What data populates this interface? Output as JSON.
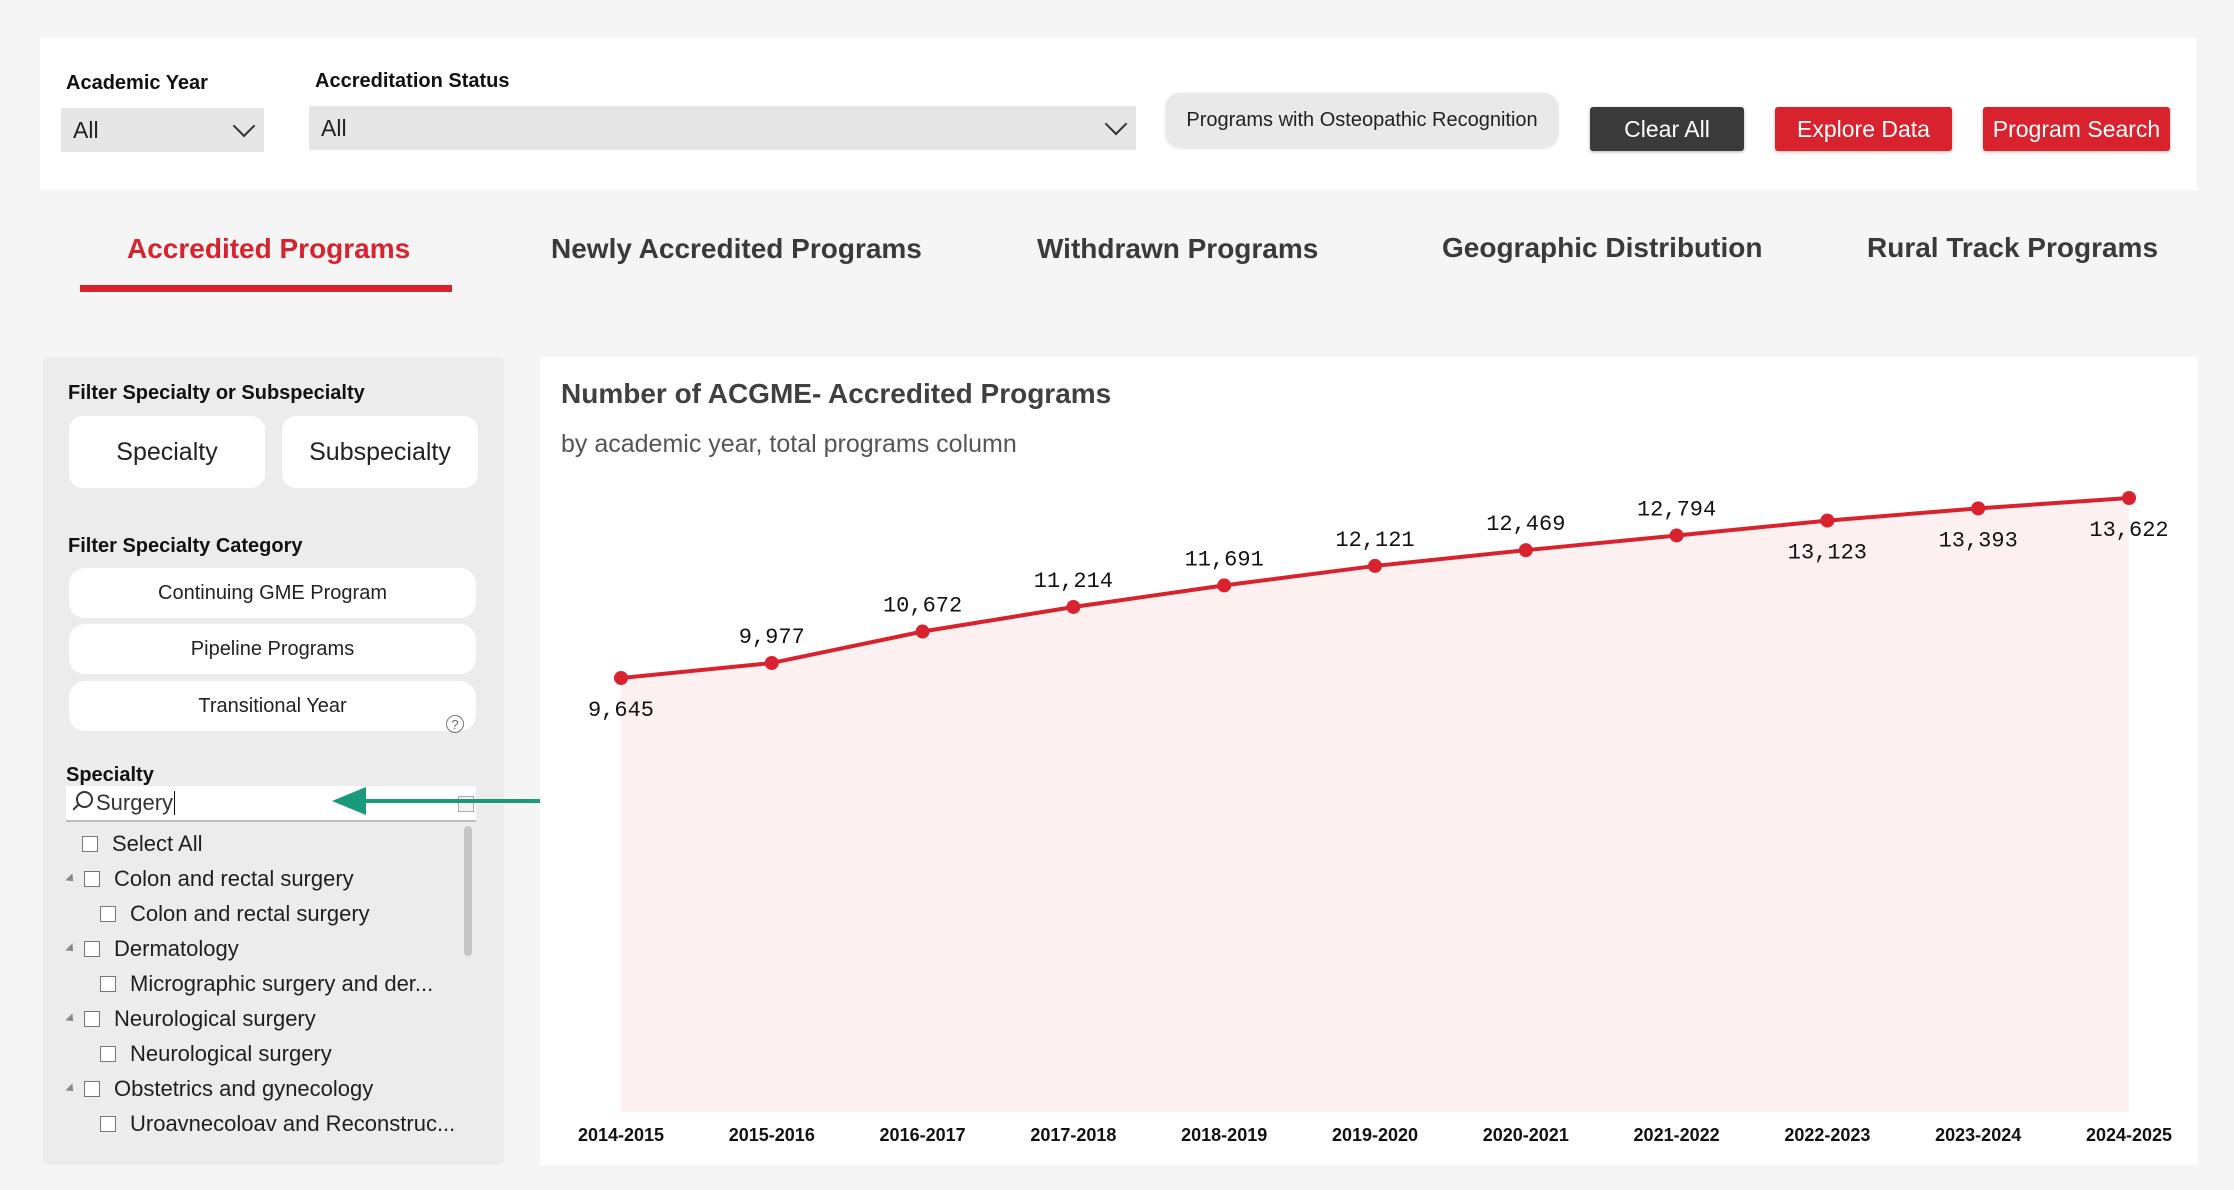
{
  "filters": {
    "academic_year": {
      "label": "Academic Year",
      "value": "All"
    },
    "accreditation_status": {
      "label": "Accreditation Status",
      "value": "All"
    },
    "osteopathic_button": "Programs with Osteopathic Recognition",
    "clear_all": "Clear All",
    "explore_data": "Explore Data",
    "program_search": "Program Search"
  },
  "tabs": [
    {
      "label": "Accredited Programs",
      "active": true
    },
    {
      "label": "Newly Accredited Programs",
      "active": false
    },
    {
      "label": "Withdrawn Programs",
      "active": false
    },
    {
      "label": "Geographic Distribution",
      "active": false
    },
    {
      "label": "Rural Track Programs",
      "active": false
    }
  ],
  "sidebar": {
    "filter_specialty_title": "Filter Specialty or Subspecialty",
    "specialty_btn": "Specialty",
    "subspecialty_btn": "Subspecialty",
    "filter_category_title": "Filter Specialty Category",
    "categories": [
      "Continuing GME Program",
      "Pipeline Programs",
      "Transitional Year"
    ],
    "help_glyph": "?",
    "specialty_title": "Specialty",
    "search_value": "Surgery",
    "tree": [
      {
        "label": "Select All",
        "level": 0,
        "expandable": false
      },
      {
        "label": "Colon and rectal surgery",
        "level": 0,
        "expandable": true
      },
      {
        "label": "Colon and rectal surgery",
        "level": 1,
        "expandable": false
      },
      {
        "label": "Dermatology",
        "level": 0,
        "expandable": true
      },
      {
        "label": "Micrographic surgery and der...",
        "level": 1,
        "expandable": false
      },
      {
        "label": "Neurological surgery",
        "level": 0,
        "expandable": true
      },
      {
        "label": "Neurological surgery",
        "level": 1,
        "expandable": false
      },
      {
        "label": "Obstetrics and gynecology",
        "level": 0,
        "expandable": true
      },
      {
        "label": "Uroavnecoloav and Reconstruc...",
        "level": 1,
        "expandable": false
      }
    ]
  },
  "chart_data": {
    "type": "area",
    "title": "Number of ACGME- Accredited Programs",
    "subtitle": "by academic year, total programs column",
    "categories": [
      "2014-2015",
      "2015-2016",
      "2016-2017",
      "2017-2018",
      "2018-2019",
      "2019-2020",
      "2020-2021",
      "2021-2022",
      "2022-2023",
      "2023-2024",
      "2024-2025"
    ],
    "values": [
      9645,
      9977,
      10672,
      11214,
      11691,
      12121,
      12469,
      12794,
      13123,
      13393,
      13622
    ],
    "labels": [
      "9,645",
      "9,977",
      "10,672",
      "11,214",
      "11,691",
      "12,121",
      "12,469",
      "12,794",
      "13,123",
      "13,393",
      "13,622"
    ],
    "ylim": [
      0,
      16000
    ],
    "line_color": "#d8232f",
    "fill_color": "#fdf0f0",
    "grid": false
  },
  "colors": {
    "accent": "#d8232f",
    "annotation_arrow": "#1a9a7a"
  }
}
